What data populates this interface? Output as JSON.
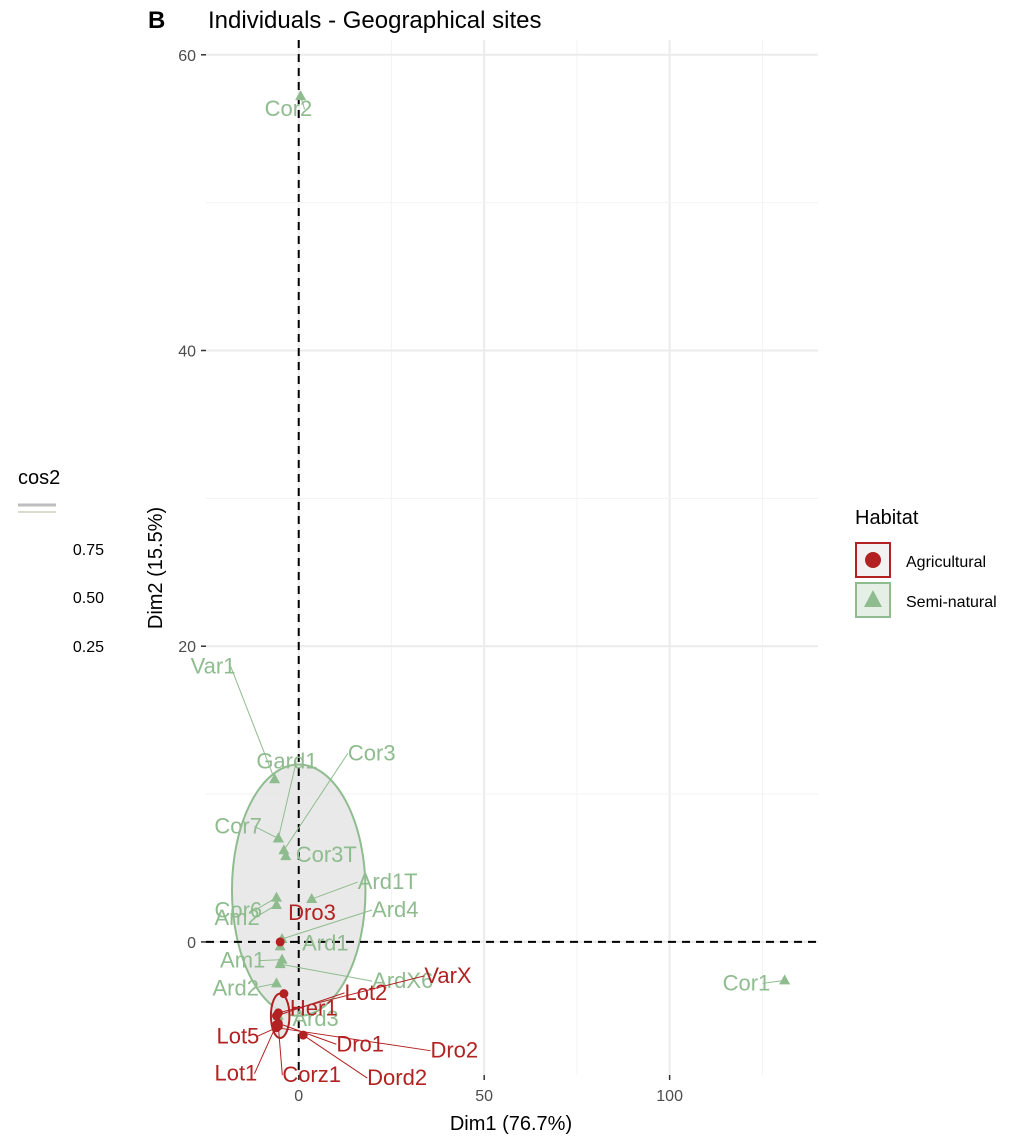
{
  "chart_data": {
    "type": "scatter",
    "panel_letter": "B",
    "title": "Individuals - Geographical sites",
    "xlabel": "Dim1 (76.7%)",
    "ylabel": "Dim2 (15.5%)",
    "xlim": [
      -25,
      140
    ],
    "ylim": [
      -9,
      61
    ],
    "x_ticks": [
      0,
      50,
      100
    ],
    "y_ticks": [
      0,
      20,
      40,
      60
    ],
    "grid": true,
    "reference_lines": {
      "x": 0,
      "y": 0,
      "style": "dashed"
    },
    "colors": {
      "Agricultural": "#b22222",
      "Semi-natural": "#8fbc8f",
      "ellipse_fill": "#e5e5e5"
    },
    "legend_position": "right",
    "legend": {
      "title": "Habitat",
      "entries": [
        {
          "label": "Agricultural",
          "shape": "circle",
          "color": "#b22222"
        },
        {
          "label": "Semi-natural",
          "shape": "triangle",
          "color": "#8fbc8f"
        }
      ]
    },
    "cos2_legend": {
      "title": "cos2",
      "values": [
        "0.75",
        "0.50",
        "0.25"
      ]
    },
    "ellipses": [
      {
        "group": "Semi-natural",
        "cx": 0,
        "cy": 3.5,
        "rx": 18,
        "ry": 8.5
      },
      {
        "group": "Agricultural",
        "cx": -5,
        "cy": -5,
        "rx": 2.5,
        "ry": 1.5
      }
    ],
    "series": [
      {
        "name": "Semi-natural",
        "shape": "triangle",
        "points": [
          {
            "label": "Cor2",
            "x": 0.5,
            "y": 57.2
          },
          {
            "label": "Cor1",
            "x": 131,
            "y": -2.6
          },
          {
            "label": "Var1",
            "x": -6.5,
            "y": 11
          },
          {
            "label": "Gard1",
            "x": -5.5,
            "y": 7
          },
          {
            "label": "Cor3",
            "x": -4,
            "y": 6.2
          },
          {
            "label": "Cor7",
            "x": -5.5,
            "y": 7
          },
          {
            "label": "Cor3T",
            "x": -3.5,
            "y": 5.8
          },
          {
            "label": "Cor6",
            "x": -6,
            "y": 3
          },
          {
            "label": "Ard1T",
            "x": 3.5,
            "y": 2.9
          },
          {
            "label": "Am2",
            "x": -6,
            "y": 2.5
          },
          {
            "label": "Ard4",
            "x": -4.5,
            "y": 0.2
          },
          {
            "label": "Ard1",
            "x": -5,
            "y": -0.3
          },
          {
            "label": "Am1",
            "x": -4.5,
            "y": -1.2
          },
          {
            "label": "ArdX6",
            "x": -5,
            "y": -1.5
          },
          {
            "label": "Ard2",
            "x": -6,
            "y": -2.8
          },
          {
            "label": "Ard3",
            "x": -5.5,
            "y": -5
          }
        ]
      },
      {
        "name": "Agricultural",
        "shape": "circle",
        "points": [
          {
            "label": "Dro3",
            "x": -5,
            "y": 0
          },
          {
            "label": "Her1",
            "x": -4,
            "y": -3.5
          },
          {
            "label": "Lot2",
            "x": -6,
            "y": -5
          },
          {
            "label": "VarX",
            "x": -5.5,
            "y": -4.8
          },
          {
            "label": "Dro1",
            "x": -5.5,
            "y": -5.5
          },
          {
            "label": "Dro2",
            "x": -6,
            "y": -5.8
          },
          {
            "label": "Lot5",
            "x": -6,
            "y": -5.8
          },
          {
            "label": "Dord2",
            "x": 1.2,
            "y": -6.3
          },
          {
            "label": "Lot1",
            "x": -6,
            "y": -5.6
          },
          {
            "label": "Corz1",
            "x": -5.5,
            "y": -5.7
          }
        ]
      }
    ]
  }
}
